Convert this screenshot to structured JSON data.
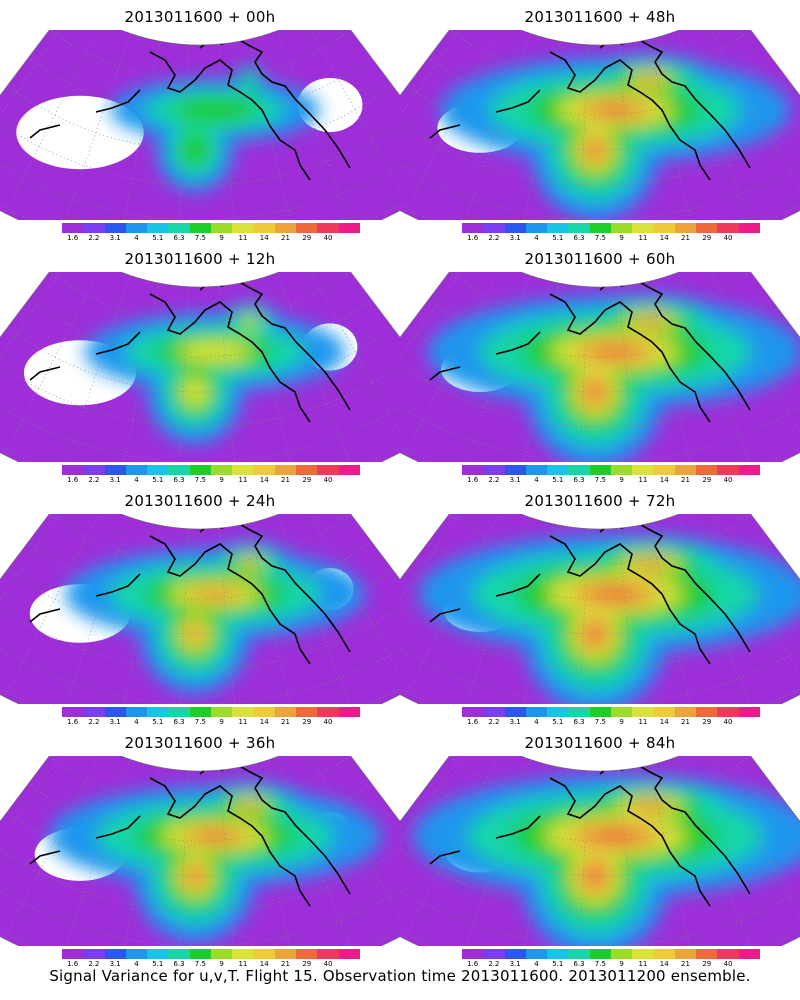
{
  "panels": [
    {
      "title": "2013011600  + 00h",
      "intensity": 0.25
    },
    {
      "title": "2013011600  + 48h",
      "intensity": 0.72
    },
    {
      "title": "2013011600  + 12h",
      "intensity": 0.42
    },
    {
      "title": "2013011600  + 60h",
      "intensity": 0.8
    },
    {
      "title": "2013011600  + 24h",
      "intensity": 0.55
    },
    {
      "title": "2013011600  + 72h",
      "intensity": 0.86
    },
    {
      "title": "2013011600  + 36h",
      "intensity": 0.66
    },
    {
      "title": "2013011600  + 84h",
      "intensity": 0.9
    }
  ],
  "colorbar": {
    "labels": [
      "1.6",
      "2.2",
      "3.1",
      "4",
      "5.1",
      "6.3",
      "7.5",
      "9",
      "11",
      "14",
      "21",
      "29",
      "40"
    ],
    "colors": [
      "#9e2fd8",
      "#7b3ff0",
      "#2b56f0",
      "#1e96ee",
      "#18c3e6",
      "#19d6a8",
      "#1ecc2a",
      "#9bdc2a",
      "#d9e23a",
      "#f0c93a",
      "#eba33a",
      "#ee6a3a",
      "#ee3a5a",
      "#ee1a88"
    ]
  },
  "caption": "Signal Variance for u,v,T. Flight 15. Observation time 2013011600. 2013011200 ensemble."
}
